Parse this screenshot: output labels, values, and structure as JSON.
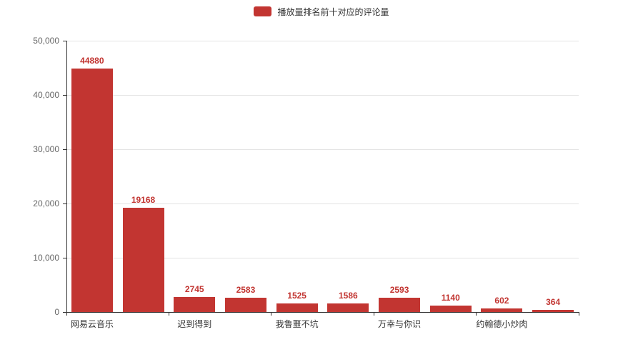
{
  "legend": {
    "label": "播放量排名前十对应的评论量",
    "swatch_color": "#c23531"
  },
  "chart_data": {
    "type": "bar",
    "title": "",
    "series_name": "播放量排名前十对应的评论量",
    "values": [
      44880,
      19168,
      2745,
      2583,
      1525,
      1586,
      2593,
      1140,
      602,
      364
    ],
    "value_labels": [
      "44880",
      "19168",
      "2745",
      "2583",
      "1525",
      "1586",
      "2593",
      "1140",
      "602",
      "364"
    ],
    "visible_category_labels": [
      {
        "index": 0,
        "label": "网易云音乐"
      },
      {
        "index": 2,
        "label": "迟到得到"
      },
      {
        "index": 4,
        "label": "我鲁噩不坑"
      },
      {
        "index": 6,
        "label": "万幸与你识"
      },
      {
        "index": 8,
        "label": "约翰德小炒肉"
      }
    ],
    "xlabel": "",
    "ylabel": "",
    "ylim": [
      0,
      50000
    ],
    "y_ticks": [
      "0",
      "10,000",
      "20,000",
      "30,000",
      "40,000",
      "50,000"
    ],
    "bar_color": "#c23531",
    "value_label_color": "#c23531",
    "grid": "horizontal-gridlines-on",
    "legend_position": "top-center"
  }
}
